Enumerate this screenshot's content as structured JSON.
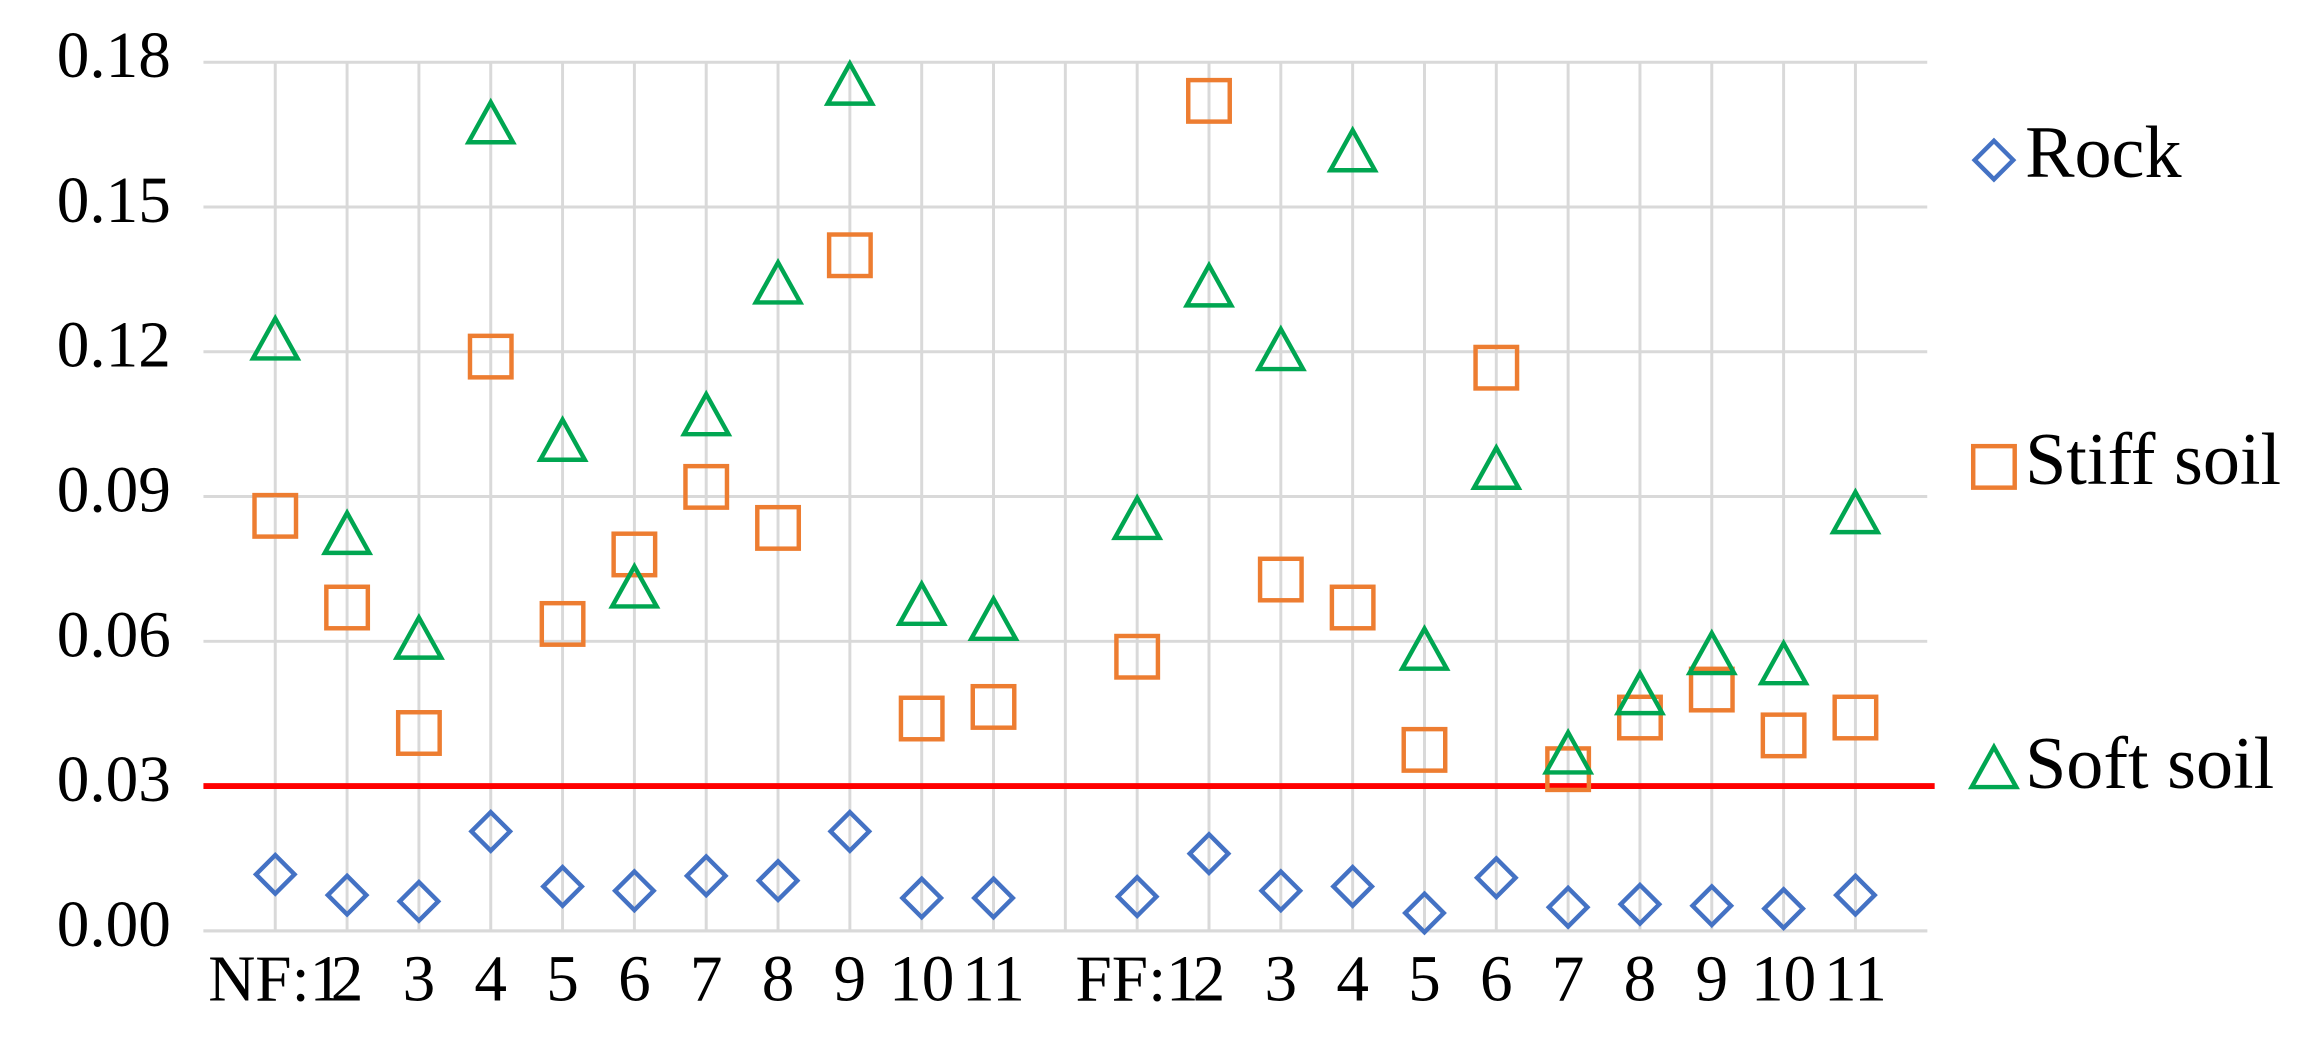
{
  "chart_data": {
    "type": "scatter",
    "categories": [
      null,
      "NF:1",
      "2",
      "3",
      "4",
      "5",
      "6",
      "7",
      "8",
      "9",
      "10",
      "11",
      null,
      "FF:1",
      "2",
      "3",
      "4",
      "5",
      "6",
      "7",
      "8",
      "9",
      "10",
      "11",
      null
    ],
    "series": [
      {
        "name": "Rock",
        "color": "#4472c4",
        "marker": "diamond",
        "values": [
          null,
          0.0117,
          0.0074,
          0.0061,
          0.0206,
          0.0092,
          0.0083,
          0.0114,
          0.0104,
          0.0206,
          0.0068,
          0.0068,
          null,
          0.0071,
          0.016,
          0.0083,
          0.0092,
          0.0037,
          0.011,
          0.0049,
          0.0055,
          0.0052,
          0.0046,
          0.0074,
          null
        ]
      },
      {
        "name": "Stiff soil",
        "color": "#ed7d31",
        "marker": "square",
        "values": [
          null,
          0.086,
          0.067,
          0.041,
          0.119,
          0.0636,
          0.078,
          0.092,
          0.0835,
          0.14,
          0.044,
          0.0464,
          null,
          0.0568,
          0.172,
          0.0728,
          0.067,
          0.0375,
          0.1167,
          0.0335,
          0.0442,
          0.05,
          0.0405,
          0.0442,
          null
        ]
      },
      {
        "name": "Soft soil",
        "color": "#00a651",
        "marker": "triangle",
        "values": [
          null,
          0.122,
          0.0817,
          0.06,
          0.1668,
          0.101,
          0.0706,
          0.1063,
          0.1336,
          0.1748,
          0.067,
          0.0639,
          null,
          0.0848,
          0.133,
          0.1198,
          0.161,
          0.0577,
          0.0952,
          0.0362,
          0.0485,
          0.0568,
          0.0547,
          0.086,
          null
        ]
      }
    ],
    "ylim": [
      0,
      0.18
    ],
    "yticks": [
      {
        "value": 0,
        "label": "0.00"
      },
      {
        "value": 0.03,
        "label": "0.03"
      },
      {
        "value": 0.06,
        "label": "0.06"
      },
      {
        "value": 0.09,
        "label": "0.09"
      },
      {
        "value": 0.12,
        "label": "0.12"
      },
      {
        "value": 0.15,
        "label": "0.15"
      },
      {
        "value": 0.18,
        "label": "0.18"
      }
    ],
    "grid": true,
    "reference_line": {
      "value": 0.03,
      "color": "#ff0000"
    },
    "legend": "right"
  }
}
